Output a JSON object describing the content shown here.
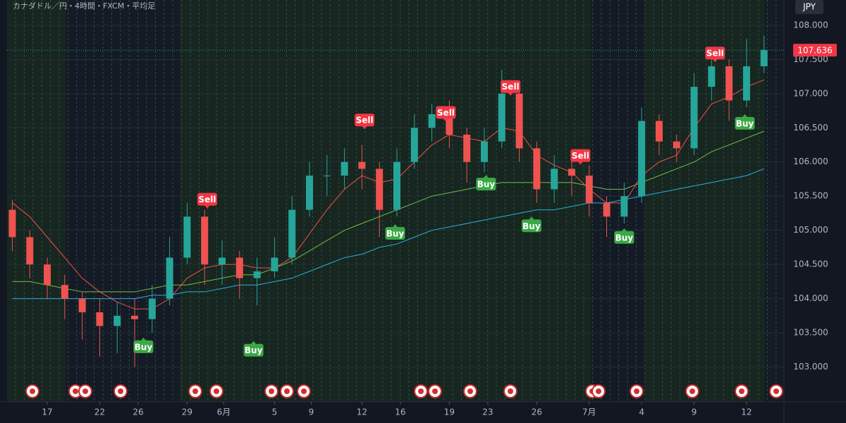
{
  "header": {
    "title": "カナダドル／円・4時間・FXCM・平均足",
    "currency": "JPY"
  },
  "chart_data": {
    "type": "candlestick",
    "x": [
      -2,
      -1,
      0,
      1,
      2,
      3,
      4,
      5,
      6,
      7,
      8,
      9,
      10,
      11,
      12,
      13,
      14,
      15,
      16,
      17,
      18,
      19,
      20,
      21,
      22,
      23,
      24,
      25,
      26,
      27,
      28,
      29,
      30,
      31,
      32,
      33,
      34,
      35,
      36,
      37,
      38,
      39,
      40,
      41
    ],
    "open": [
      105.3,
      104.9,
      104.5,
      104.2,
      104.0,
      103.8,
      103.6,
      103.75,
      103.7,
      104.0,
      104.6,
      105.2,
      104.5,
      104.6,
      104.3,
      104.4,
      104.6,
      105.3,
      105.8,
      105.8,
      106.0,
      105.9,
      105.3,
      106.0,
      106.5,
      106.7,
      106.4,
      106.0,
      106.3,
      107.0,
      106.2,
      105.6,
      105.9,
      105.8,
      105.4,
      105.2,
      105.5,
      106.6,
      106.3,
      106.2,
      107.1,
      107.4,
      106.9,
      107.4
    ],
    "high": [
      105.45,
      105.0,
      104.6,
      104.35,
      104.1,
      104.0,
      103.95,
      104.0,
      104.2,
      104.9,
      105.4,
      105.3,
      104.85,
      104.7,
      104.6,
      104.9,
      105.5,
      106.0,
      106.1,
      106.2,
      106.25,
      106.0,
      106.2,
      106.7,
      106.85,
      106.9,
      106.5,
      106.5,
      107.35,
      107.1,
      106.3,
      106.1,
      106.05,
      105.95,
      105.5,
      105.7,
      106.8,
      106.7,
      106.4,
      107.3,
      107.6,
      107.5,
      107.8,
      107.85
    ],
    "low": [
      104.7,
      104.3,
      104.0,
      103.7,
      103.4,
      103.15,
      103.2,
      103.0,
      103.5,
      103.9,
      104.5,
      104.2,
      104.2,
      104.0,
      103.9,
      104.3,
      104.5,
      105.2,
      105.5,
      105.6,
      105.6,
      104.9,
      105.2,
      105.9,
      106.3,
      106.2,
      105.7,
      105.85,
      106.2,
      106.0,
      105.4,
      105.4,
      105.5,
      105.2,
      104.9,
      105.1,
      105.4,
      106.1,
      106.0,
      106.1,
      106.9,
      106.6,
      106.8,
      107.3
    ],
    "close": [
      104.9,
      104.5,
      104.2,
      104.0,
      103.8,
      103.6,
      103.75,
      103.7,
      104.0,
      104.6,
      105.2,
      104.5,
      104.6,
      104.3,
      104.4,
      104.6,
      105.3,
      105.8,
      105.8,
      106.0,
      105.9,
      105.3,
      106.0,
      106.5,
      106.7,
      106.4,
      106.0,
      106.3,
      107.0,
      106.2,
      105.6,
      105.9,
      105.8,
      105.4,
      105.2,
      105.5,
      106.6,
      106.3,
      106.2,
      107.1,
      107.4,
      106.9,
      107.4,
      107.64
    ],
    "up_color": "#26a69a",
    "down_color": "#ef5350",
    "series": [
      {
        "color": "#f0504a",
        "values": [
          105.4,
          105.2,
          104.9,
          104.6,
          104.3,
          104.1,
          103.95,
          103.85,
          103.85,
          104.0,
          104.3,
          104.45,
          104.5,
          104.5,
          104.45,
          104.45,
          104.6,
          104.95,
          105.3,
          105.6,
          105.8,
          105.7,
          105.75,
          106.0,
          106.25,
          106.4,
          106.35,
          106.3,
          106.5,
          106.45,
          106.1,
          105.95,
          105.85,
          105.6,
          105.4,
          105.4,
          105.8,
          106.0,
          106.1,
          106.5,
          106.85,
          106.95,
          107.1,
          107.2
        ]
      },
      {
        "color": "#6fbf4a",
        "values": [
          104.25,
          104.25,
          104.2,
          104.15,
          104.1,
          104.1,
          104.1,
          104.1,
          104.15,
          104.2,
          104.2,
          104.25,
          104.3,
          104.35,
          104.35,
          104.45,
          104.55,
          104.7,
          104.85,
          105.0,
          105.1,
          105.2,
          105.3,
          105.4,
          105.5,
          105.55,
          105.6,
          105.65,
          105.7,
          105.7,
          105.7,
          105.7,
          105.7,
          105.65,
          105.6,
          105.6,
          105.7,
          105.8,
          105.9,
          106.0,
          106.15,
          106.25,
          106.35,
          106.45
        ]
      },
      {
        "color": "#2ab1e0",
        "values": [
          104.0,
          104.0,
          104.0,
          104.0,
          104.0,
          104.0,
          104.0,
          104.0,
          104.05,
          104.05,
          104.1,
          104.1,
          104.15,
          104.2,
          104.2,
          104.25,
          104.3,
          104.4,
          104.5,
          104.6,
          104.65,
          104.75,
          104.8,
          104.9,
          105.0,
          105.05,
          105.1,
          105.15,
          105.2,
          105.25,
          105.3,
          105.3,
          105.35,
          105.4,
          105.4,
          105.45,
          105.5,
          105.55,
          105.6,
          105.65,
          105.7,
          105.75,
          105.8,
          105.9
        ]
      }
    ],
    "signals": [
      {
        "label": "Sell",
        "x": 9.15,
        "price": 105.32
      },
      {
        "label": "Sell",
        "x": 18.15,
        "price": 106.48
      },
      {
        "label": "Sell",
        "x": 22.8,
        "price": 106.59
      },
      {
        "label": "Sell",
        "x": 26.5,
        "price": 106.97
      },
      {
        "label": "Sell",
        "x": 30.5,
        "price": 105.96
      },
      {
        "label": "Sell",
        "x": 38.2,
        "price": 107.46
      },
      {
        "label": "Buy",
        "x": 5.5,
        "price": 103.43
      },
      {
        "label": "Buy",
        "x": 11.8,
        "price": 103.38
      },
      {
        "label": "Buy",
        "x": 19.9,
        "price": 105.09
      },
      {
        "label": "Buy",
        "x": 25.1,
        "price": 105.81
      },
      {
        "label": "Buy",
        "x": 27.7,
        "price": 105.2
      },
      {
        "label": "Buy",
        "x": 33.0,
        "price": 105.03
      },
      {
        "label": "Buy",
        "x": 39.9,
        "price": 106.7
      }
    ],
    "current_price": 107.636,
    "xlim": [
      -2.3,
      42.14
    ],
    "ylim": [
      102.49,
      108.37
    ],
    "xticks": [
      {
        "value": 0,
        "label": "17"
      },
      {
        "value": 3,
        "label": "22"
      },
      {
        "value": 5.2,
        "label": "26"
      },
      {
        "value": 8,
        "label": "29"
      },
      {
        "value": 10.1,
        "label": "6月"
      },
      {
        "value": 13,
        "label": "5"
      },
      {
        "value": 15.1,
        "label": "9"
      },
      {
        "value": 18,
        "label": "12"
      },
      {
        "value": 20.2,
        "label": "16"
      },
      {
        "value": 23,
        "label": "19"
      },
      {
        "value": 25.2,
        "label": "23"
      },
      {
        "value": 28,
        "label": "26"
      },
      {
        "value": 31,
        "label": "7月"
      },
      {
        "value": 34,
        "label": "4"
      },
      {
        "value": 37,
        "label": "9"
      },
      {
        "value": 40,
        "label": "12"
      }
    ],
    "yticks": [
      {
        "value": 103,
        "label": "103.000"
      },
      {
        "value": 103.5,
        "label": "103.500"
      },
      {
        "value": 104,
        "label": "104.000"
      },
      {
        "value": 104.5,
        "label": "104.500"
      },
      {
        "value": 105,
        "label": "105.000"
      },
      {
        "value": 105.5,
        "label": "105.500"
      },
      {
        "value": 106,
        "label": "106.000"
      },
      {
        "value": 106.5,
        "label": "106.500"
      },
      {
        "value": 107,
        "label": "107.000"
      },
      {
        "value": 107.5,
        "label": "107.500"
      },
      {
        "value": 108,
        "label": "108.000"
      }
    ]
  }
}
